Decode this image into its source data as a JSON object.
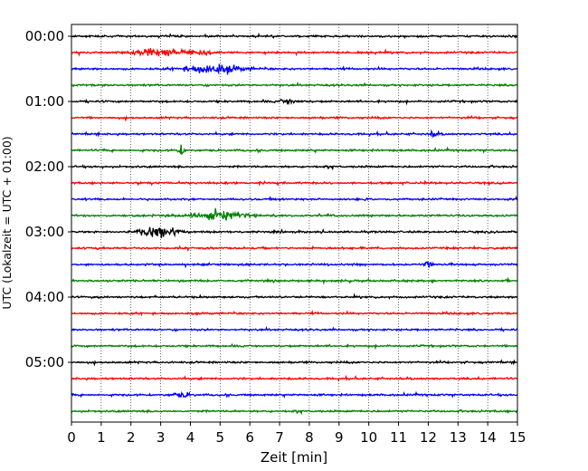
{
  "chart_data": {
    "type": "line",
    "title": "",
    "xlabel": "Zeit  [min]",
    "ylabel": "UTC (Lokalzeit = UTC + 01:00)",
    "xlim": [
      0,
      15
    ],
    "x_ticks": [
      "0",
      "1",
      "2",
      "3",
      "4",
      "5",
      "6",
      "7",
      "8",
      "9",
      "10",
      "11",
      "12",
      "13",
      "14",
      "15"
    ],
    "y_ticks": [
      {
        "row": 0,
        "label": "00:00"
      },
      {
        "row": 4,
        "label": "01:00"
      },
      {
        "row": 8,
        "label": "02:00"
      },
      {
        "row": 12,
        "label": "03:00"
      },
      {
        "row": 16,
        "label": "04:00"
      },
      {
        "row": 20,
        "label": "05:00"
      }
    ],
    "trace_interval_min": 15,
    "row_count": 24,
    "colors": [
      "#000000",
      "#ff0000",
      "#0000ff",
      "#008000"
    ],
    "grid_x": true,
    "grid_style": "dotted",
    "events": [
      {
        "row": 1,
        "center_min": 2.6,
        "width_min": 0.5,
        "amplitude": 5
      },
      {
        "row": 1,
        "center_min": 3.5,
        "width_min": 0.6,
        "amplitude": 4
      },
      {
        "row": 1,
        "center_min": 4.5,
        "width_min": 0.4,
        "amplitude": 4
      },
      {
        "row": 2,
        "center_min": 4.8,
        "width_min": 0.9,
        "amplitude": 8
      },
      {
        "row": 4,
        "center_min": 7.3,
        "width_min": 0.3,
        "amplitude": 4
      },
      {
        "row": 6,
        "center_min": 12.2,
        "width_min": 0.15,
        "amplitude": 5
      },
      {
        "row": 7,
        "center_min": 3.7,
        "width_min": 0.12,
        "amplitude": 8
      },
      {
        "row": 11,
        "center_min": 4.9,
        "width_min": 0.9,
        "amplitude": 7
      },
      {
        "row": 12,
        "center_min": 2.9,
        "width_min": 0.6,
        "amplitude": 10
      },
      {
        "row": 14,
        "center_min": 12.0,
        "width_min": 0.1,
        "amplitude": 7
      },
      {
        "row": 22,
        "center_min": 3.7,
        "width_min": 0.3,
        "amplitude": 4
      }
    ]
  }
}
